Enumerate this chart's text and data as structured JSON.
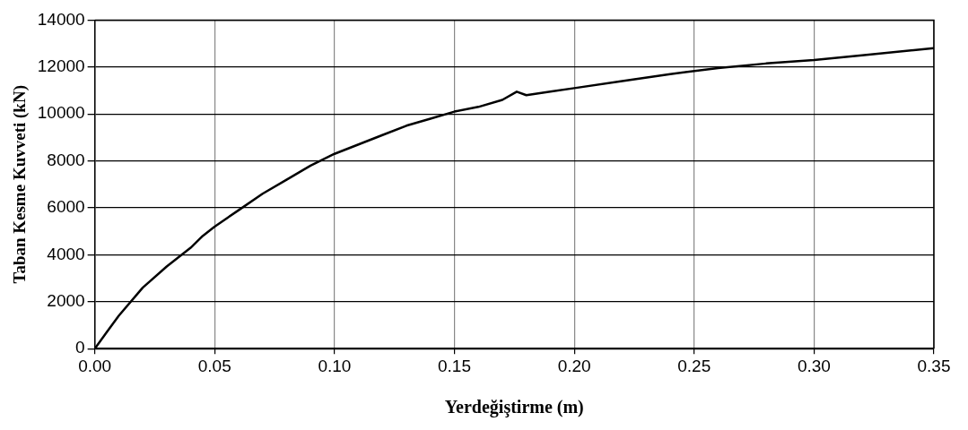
{
  "chart_data": {
    "type": "line",
    "xlabel": "Yerdeğiştirme (m)",
    "ylabel": "Taban Kesme Kuvveti (kN)",
    "x": [
      0,
      0.005,
      0.01,
      0.02,
      0.03,
      0.04,
      0.045,
      0.05,
      0.06,
      0.07,
      0.08,
      0.09,
      0.1,
      0.11,
      0.12,
      0.13,
      0.14,
      0.15,
      0.16,
      0.17,
      0.176,
      0.18,
      0.19,
      0.2,
      0.22,
      0.24,
      0.26,
      0.28,
      0.3,
      0.32,
      0.35
    ],
    "series": [
      {
        "color": "#000000",
        "values": [
          0,
          700,
          1400,
          2600,
          3500,
          4300,
          4800,
          5200,
          5900,
          6600,
          7200,
          7800,
          8300,
          8700,
          9100,
          9500,
          9800,
          10100,
          10300,
          10600,
          10950,
          10800,
          10950,
          11100,
          11400,
          11700,
          11950,
          12150,
          12300,
          12500,
          12800
        ]
      }
    ],
    "xlim": [
      0,
      0.35
    ],
    "xticks": [
      {
        "value": 0,
        "label": "0.00"
      },
      {
        "value": 0.05,
        "label": "0.05"
      },
      {
        "value": 0.1,
        "label": "0.10"
      },
      {
        "value": 0.15,
        "label": "0.15"
      },
      {
        "value": 0.2,
        "label": "0.20"
      },
      {
        "value": 0.25,
        "label": "0.25"
      },
      {
        "value": 0.3,
        "label": "0.30"
      },
      {
        "value": 0.35,
        "label": "0.35"
      }
    ],
    "ylim": [
      0,
      14000
    ],
    "yticks": [
      0,
      2000,
      4000,
      6000,
      8000,
      10000,
      12000,
      14000
    ],
    "grid": true,
    "legend": false,
    "marker": "none",
    "line_style": "solid"
  }
}
